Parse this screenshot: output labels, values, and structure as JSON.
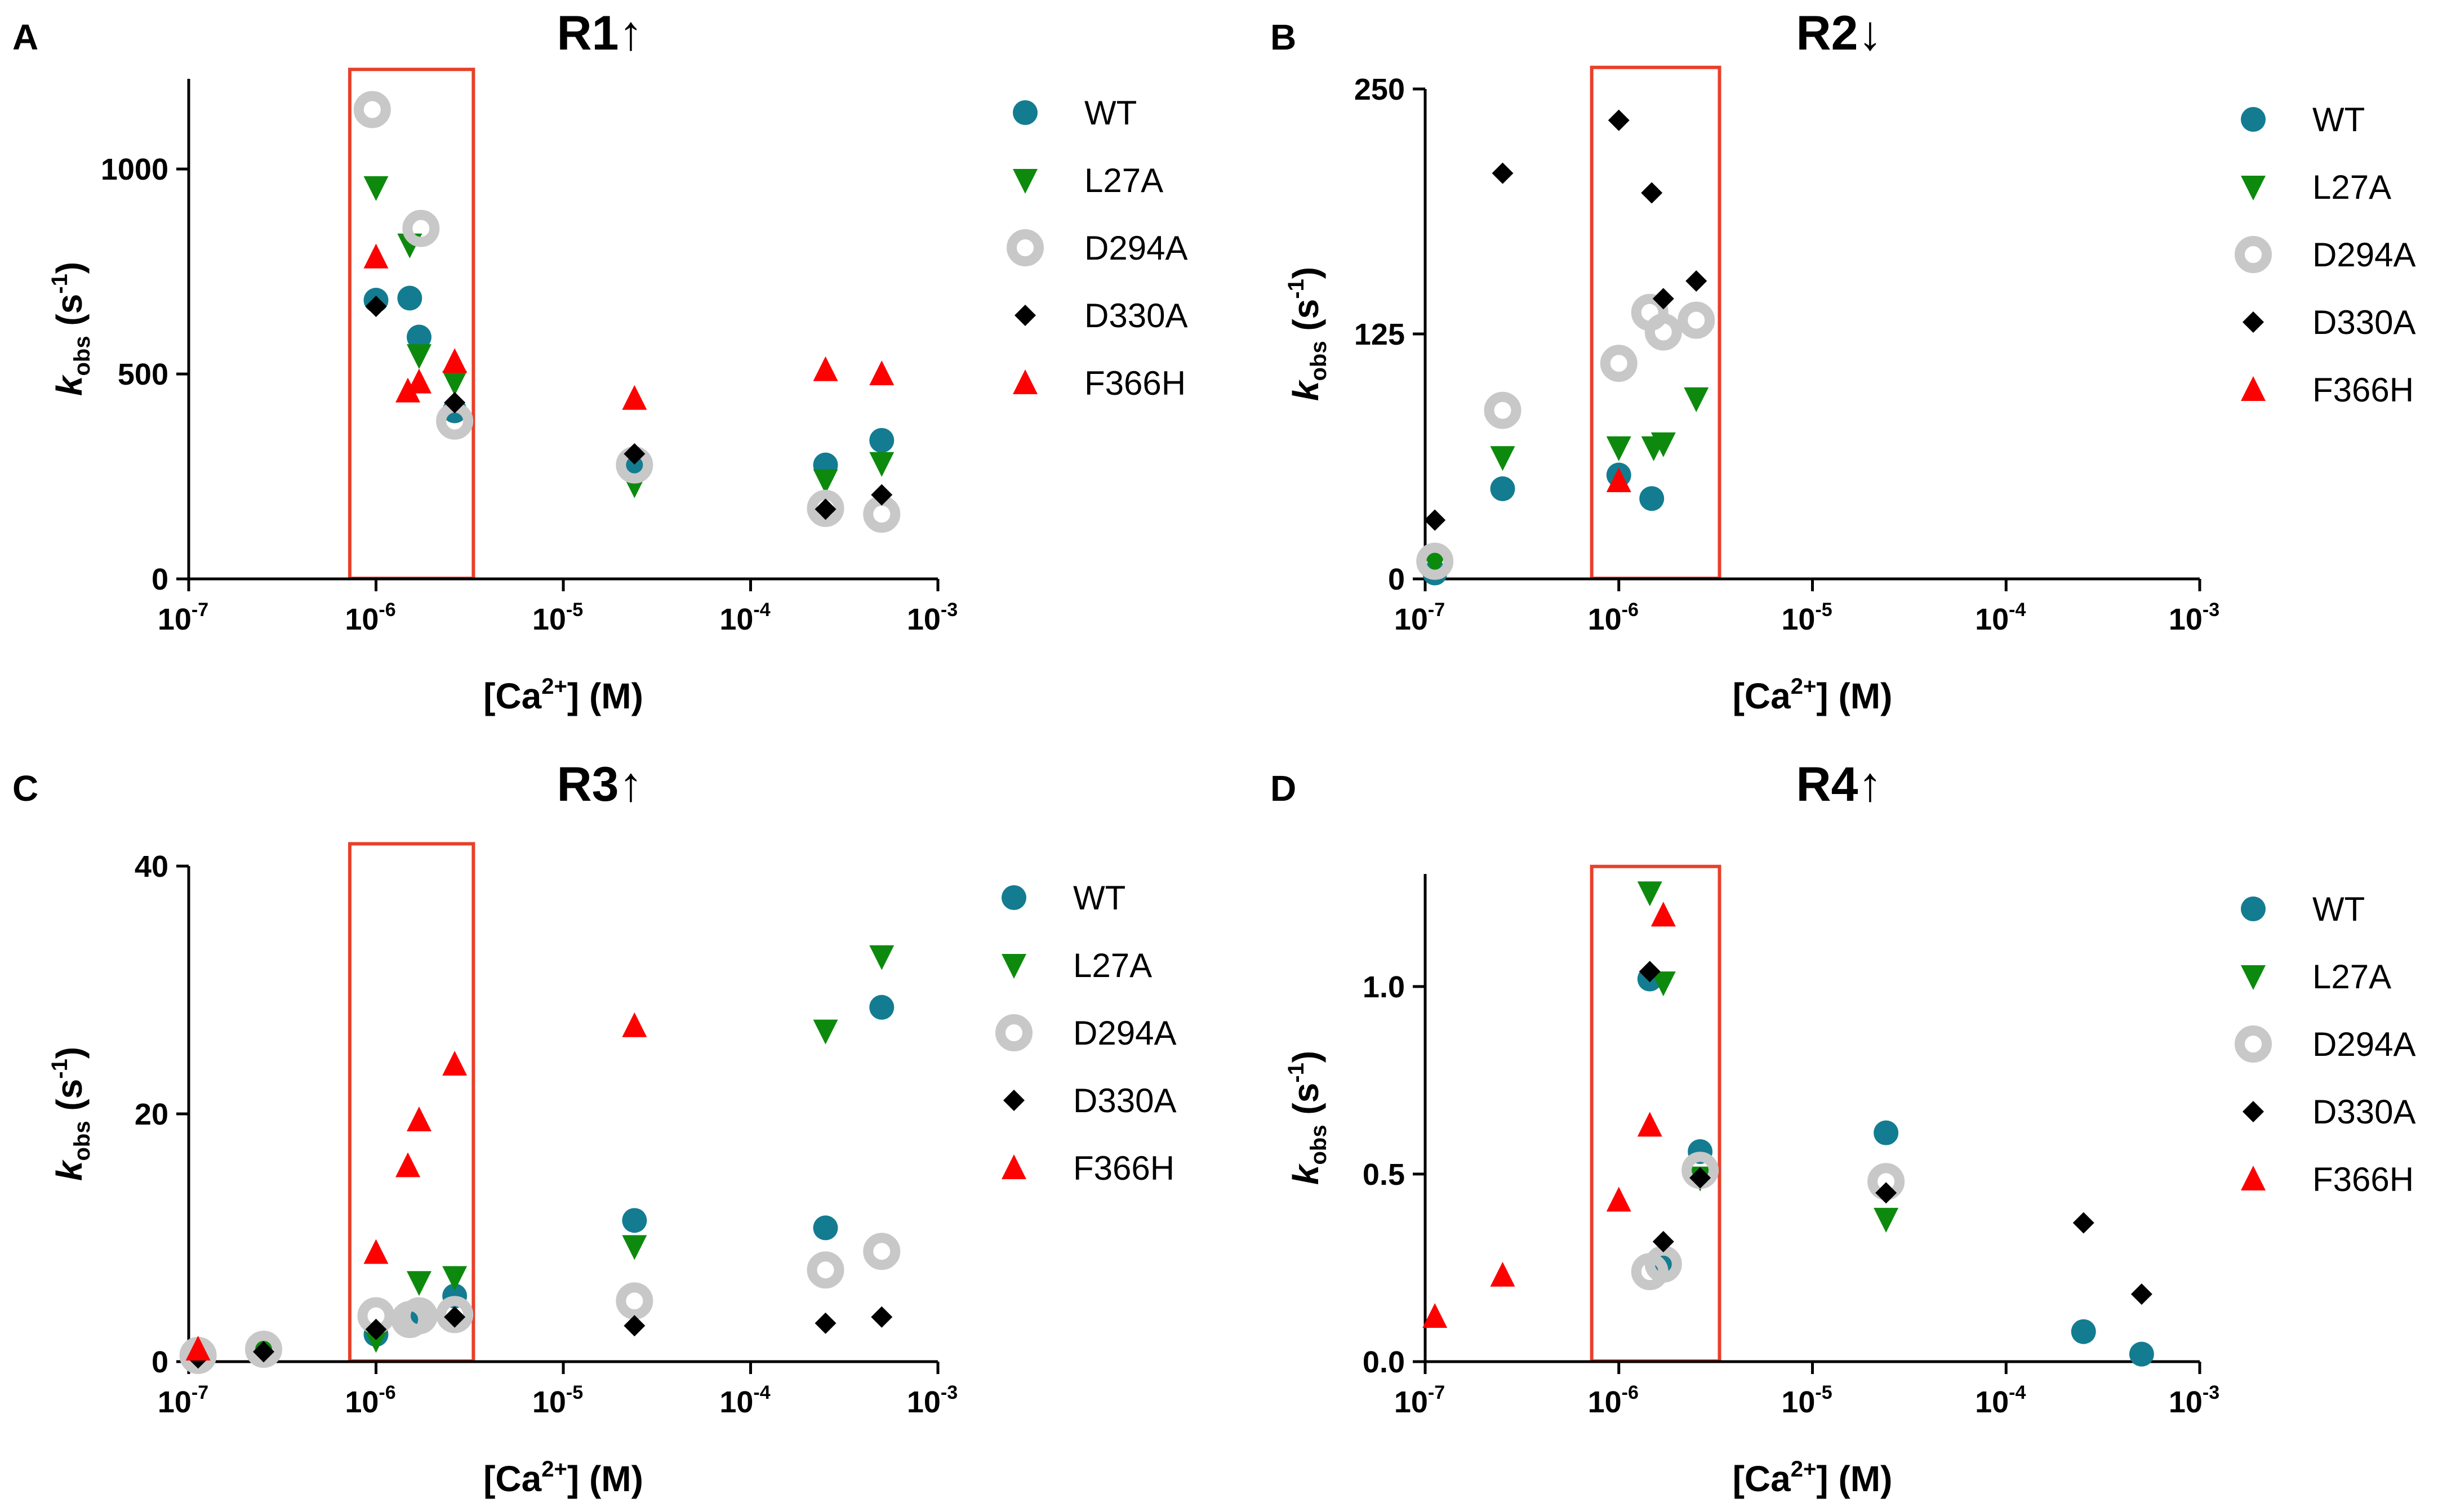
{
  "figure": {
    "panels": [
      {
        "letter": "A",
        "title": "R1↑",
        "x_axis": {
          "base": "10",
          "exponents": [
            "-7",
            "-6",
            "-5",
            "-4",
            "-3"
          ],
          "log_range": [
            -7,
            -3
          ],
          "label_main": "[Ca",
          "label_sup": "2+",
          "label_tail": "] (M)"
        },
        "y_axis": {
          "ticks": [
            "0",
            "500",
            "1000"
          ],
          "tick_values": [
            0,
            500,
            1000
          ],
          "range": [
            0,
            1220
          ],
          "label_k": "k",
          "label_sub": "obs",
          "label_unit_open": " (s",
          "label_sup": "-1",
          "label_close": ")"
        },
        "highlight": {
          "log_from": -6.14,
          "log_to": -5.48,
          "val_from": 0,
          "val_to": 1243
        },
        "legend": [
          "WT",
          "L27A",
          "D294A",
          "D330A",
          "F366H"
        ],
        "series": [
          {
            "name": "WT",
            "marker": "circle",
            "color": "#137c91",
            "points": [
              [
                -6.0,
                680
              ],
              [
                -5.82,
                685
              ],
              [
                -5.77,
                590
              ],
              [
                -5.58,
                410
              ],
              [
                -4.62,
                272
              ],
              [
                -3.6,
                278
              ],
              [
                -3.3,
                338
              ]
            ]
          },
          {
            "name": "L27A",
            "marker": "tri_down",
            "color": "#0d8a0d",
            "points": [
              [
                -6.0,
                955
              ],
              [
                -5.82,
                815
              ],
              [
                -5.77,
                545
              ],
              [
                -5.58,
                480
              ],
              [
                -4.62,
                230
              ],
              [
                -3.6,
                240
              ],
              [
                -3.3,
                282
              ]
            ]
          },
          {
            "name": "D294A",
            "marker": "ring",
            "color": "#c8c8c8",
            "points": [
              [
                -6.02,
                1145
              ],
              [
                -5.76,
                855
              ],
              [
                -5.58,
                385
              ],
              [
                -4.62,
                278
              ],
              [
                -3.6,
                172
              ],
              [
                -3.3,
                158
              ]
            ]
          },
          {
            "name": "D330A",
            "marker": "diamond",
            "color": "#000000",
            "points": [
              [
                -6.0,
                665
              ],
              [
                -5.58,
                430
              ],
              [
                -4.62,
                305
              ],
              [
                -3.6,
                170
              ],
              [
                -3.3,
                205
              ]
            ]
          },
          {
            "name": "F366H",
            "marker": "tri_up",
            "color": "#ff0000",
            "points": [
              [
                -6.0,
                785
              ],
              [
                -5.83,
                458
              ],
              [
                -5.77,
                480
              ],
              [
                -5.58,
                530
              ],
              [
                -4.62,
                440
              ],
              [
                -3.6,
                510
              ],
              [
                -3.3,
                500
              ]
            ]
          }
        ]
      },
      {
        "letter": "B",
        "title": "R2↓",
        "x_axis": {
          "base": "10",
          "exponents": [
            "-7",
            "-6",
            "-5",
            "-4",
            "-3"
          ],
          "log_range": [
            -7,
            -3
          ],
          "label_main": "[Ca",
          "label_sup": "2+",
          "label_tail": "] (M)"
        },
        "y_axis": {
          "ticks": [
            "0",
            "125",
            "250"
          ],
          "tick_values": [
            0,
            125,
            250
          ],
          "range": [
            0,
            250
          ],
          "label_k": "k",
          "label_sub": "obs",
          "label_unit_open": " (s",
          "label_sup": "-1",
          "label_close": ")"
        },
        "highlight": {
          "log_from": -6.14,
          "log_to": -5.48,
          "val_from": 0,
          "val_to": 261
        },
        "legend": [
          "WT",
          "L27A",
          "D294A",
          "D330A",
          "F366H"
        ],
        "series": [
          {
            "name": "WT",
            "marker": "circle",
            "color": "#137c91",
            "points": [
              [
                -6.95,
                3
              ],
              [
                -6.6,
                46
              ],
              [
                -6.0,
                53
              ],
              [
                -5.83,
                41
              ]
            ]
          },
          {
            "name": "L27A",
            "marker": "tri_down",
            "color": "#0d8a0d",
            "points": [
              [
                -6.95,
                8
              ],
              [
                -6.6,
                62
              ],
              [
                -6.0,
                67
              ],
              [
                -5.82,
                67
              ],
              [
                -5.77,
                69
              ],
              [
                -5.6,
                92
              ]
            ]
          },
          {
            "name": "D294A",
            "marker": "ring",
            "color": "#c8c8c8",
            "points": [
              [
                -6.95,
                9
              ],
              [
                -6.6,
                86
              ],
              [
                -6.0,
                110
              ],
              [
                -5.84,
                136
              ],
              [
                -5.77,
                126
              ],
              [
                -5.6,
                132
              ]
            ]
          },
          {
            "name": "D330A",
            "marker": "diamond",
            "color": "#000000",
            "points": [
              [
                -6.95,
                30
              ],
              [
                -6.6,
                207
              ],
              [
                -6.0,
                234
              ],
              [
                -5.83,
                197
              ],
              [
                -5.77,
                143
              ],
              [
                -5.6,
                152
              ]
            ]
          },
          {
            "name": "F366H",
            "marker": "tri_up",
            "color": "#ff0000",
            "points": [
              [
                -6.0,
                50
              ]
            ]
          }
        ]
      },
      {
        "letter": "C",
        "title": "R3↑",
        "x_axis": {
          "base": "10",
          "exponents": [
            "-7",
            "-6",
            "-5",
            "-4",
            "-3"
          ],
          "log_range": [
            -7,
            -3
          ],
          "label_main": "[Ca",
          "label_sup": "2+",
          "label_tail": "] (M)"
        },
        "y_axis": {
          "ticks": [
            "0",
            "20",
            "40"
          ],
          "tick_values": [
            0,
            20,
            40
          ],
          "range": [
            0,
            40
          ],
          "label_k": "k",
          "label_sub": "obs",
          "label_unit_open": " (s",
          "label_sup": "-1",
          "label_close": ")"
        },
        "highlight": {
          "log_from": -6.14,
          "log_to": -5.48,
          "val_from": 0,
          "val_to": 41.8
        },
        "legend": [
          "WT",
          "L27A",
          "D294A",
          "D330A",
          "F366H"
        ],
        "series": [
          {
            "name": "WT",
            "marker": "circle",
            "color": "#137c91",
            "points": [
              [
                -6.95,
                0.4
              ],
              [
                -6.6,
                0.7
              ],
              [
                -6.0,
                2.2
              ],
              [
                -5.82,
                3.1
              ],
              [
                -5.77,
                3.5
              ],
              [
                -5.58,
                5.3
              ],
              [
                -4.62,
                11.4
              ],
              [
                -3.6,
                10.8
              ],
              [
                -3.3,
                28.6
              ]
            ]
          },
          {
            "name": "L27A",
            "marker": "tri_down",
            "color": "#0d8a0d",
            "points": [
              [
                -6.95,
                0.4
              ],
              [
                -6.6,
                0.8
              ],
              [
                -6.0,
                1.8
              ],
              [
                -5.77,
                6.4
              ],
              [
                -5.58,
                6.8
              ],
              [
                -4.62,
                9.3
              ],
              [
                -3.6,
                26.7
              ],
              [
                -3.3,
                32.7
              ]
            ]
          },
          {
            "name": "D294A",
            "marker": "ring",
            "color": "#c8c8c8",
            "points": [
              [
                -6.95,
                0.5
              ],
              [
                -6.6,
                1.0
              ],
              [
                -6.0,
                3.7
              ],
              [
                -5.82,
                3.4
              ],
              [
                -5.77,
                3.7
              ],
              [
                -5.58,
                3.8
              ],
              [
                -4.62,
                4.9
              ],
              [
                -3.6,
                7.4
              ],
              [
                -3.3,
                8.9
              ]
            ]
          },
          {
            "name": "D330A",
            "marker": "diamond",
            "color": "#000000",
            "points": [
              [
                -6.95,
                0.3
              ],
              [
                -6.6,
                0.8
              ],
              [
                -6.0,
                2.6
              ],
              [
                -5.58,
                3.6
              ],
              [
                -4.62,
                2.9
              ],
              [
                -3.6,
                3.1
              ],
              [
                -3.3,
                3.6
              ]
            ]
          },
          {
            "name": "F366H",
            "marker": "tri_up",
            "color": "#ff0000",
            "points": [
              [
                -6.95,
                1.0
              ],
              [
                -6.0,
                8.8
              ],
              [
                -5.83,
                15.8
              ],
              [
                -5.77,
                19.5
              ],
              [
                -5.58,
                24.0
              ],
              [
                -4.62,
                27.1
              ]
            ]
          }
        ]
      },
      {
        "letter": "D",
        "title": "R4↑",
        "x_axis": {
          "base": "10",
          "exponents": [
            "-7",
            "-6",
            "-5",
            "-4",
            "-3"
          ],
          "log_range": [
            -7,
            -3
          ],
          "label_main": "[Ca",
          "label_sup": "2+",
          "label_tail": "] (M)"
        },
        "y_axis": {
          "ticks": [
            "0.0",
            "0.5",
            "1.0"
          ],
          "tick_values": [
            0,
            0.5,
            1.0
          ],
          "range": [
            0,
            1.3
          ],
          "label_k": "k",
          "label_sub": "obs",
          "label_unit_open": " (s",
          "label_sup": "-1",
          "label_close": ")"
        },
        "highlight": {
          "log_from": -6.14,
          "log_to": -5.48,
          "val_from": 0,
          "val_to": 1.32
        },
        "legend": [
          "WT",
          "L27A",
          "D294A",
          "D330A",
          "F366H"
        ],
        "series": [
          {
            "name": "WT",
            "marker": "circle",
            "color": "#137c91",
            "points": [
              [
                -5.84,
                1.02
              ],
              [
                -5.77,
                0.27
              ],
              [
                -5.58,
                0.56
              ],
              [
                -4.62,
                0.61
              ],
              [
                -3.6,
                0.08
              ],
              [
                -3.3,
                0.02
              ]
            ]
          },
          {
            "name": "L27A",
            "marker": "tri_down",
            "color": "#0d8a0d",
            "points": [
              [
                -5.84,
                1.25
              ],
              [
                -5.77,
                1.01
              ],
              [
                -5.58,
                0.49
              ],
              [
                -4.62,
                0.38
              ]
            ]
          },
          {
            "name": "D294A",
            "marker": "ring",
            "color": "#c8c8c8",
            "points": [
              [
                -5.84,
                0.24
              ],
              [
                -5.77,
                0.26
              ],
              [
                -5.58,
                0.51
              ],
              [
                -4.62,
                0.48
              ]
            ]
          },
          {
            "name": "D330A",
            "marker": "diamond",
            "color": "#000000",
            "points": [
              [
                -5.84,
                1.04
              ],
              [
                -5.77,
                0.32
              ],
              [
                -5.58,
                0.49
              ],
              [
                -4.62,
                0.45
              ],
              [
                -3.6,
                0.37
              ],
              [
                -3.3,
                0.18
              ]
            ]
          },
          {
            "name": "F366H",
            "marker": "tri_up",
            "color": "#ff0000",
            "points": [
              [
                -6.95,
                0.12
              ],
              [
                -6.6,
                0.23
              ],
              [
                -6.0,
                0.43
              ],
              [
                -5.84,
                0.63
              ],
              [
                -5.77,
                1.19
              ]
            ]
          }
        ]
      }
    ]
  },
  "chart_data": [
    {
      "type": "scatter",
      "title": "R1↑",
      "xlabel": "[Ca2+] (M)",
      "ylabel": "kobs (s-1)",
      "xscale": "log",
      "xlim": [
        1e-07,
        0.001
      ],
      "ylim": [
        0,
        1220
      ],
      "legend": [
        "WT",
        "L27A",
        "D294A",
        "D330A",
        "F366H"
      ]
    },
    {
      "type": "scatter",
      "title": "R2↓",
      "xlabel": "[Ca2+] (M)",
      "ylabel": "kobs (s-1)",
      "xscale": "log",
      "xlim": [
        1e-07,
        0.001
      ],
      "ylim": [
        0,
        250
      ],
      "legend": [
        "WT",
        "L27A",
        "D294A",
        "D330A",
        "F366H"
      ]
    },
    {
      "type": "scatter",
      "title": "R3↑",
      "xlabel": "[Ca2+] (M)",
      "ylabel": "kobs (s-1)",
      "xscale": "log",
      "xlim": [
        1e-07,
        0.001
      ],
      "ylim": [
        0,
        40
      ],
      "legend": [
        "WT",
        "L27A",
        "D294A",
        "D330A",
        "F366H"
      ]
    },
    {
      "type": "scatter",
      "title": "R4↑",
      "xlabel": "[Ca2+] (M)",
      "ylabel": "kobs (s-1)",
      "xscale": "log",
      "xlim": [
        1e-07,
        0.001
      ],
      "ylim": [
        0,
        1.3
      ],
      "legend": [
        "WT",
        "L27A",
        "D294A",
        "D330A",
        "F366H"
      ]
    }
  ]
}
